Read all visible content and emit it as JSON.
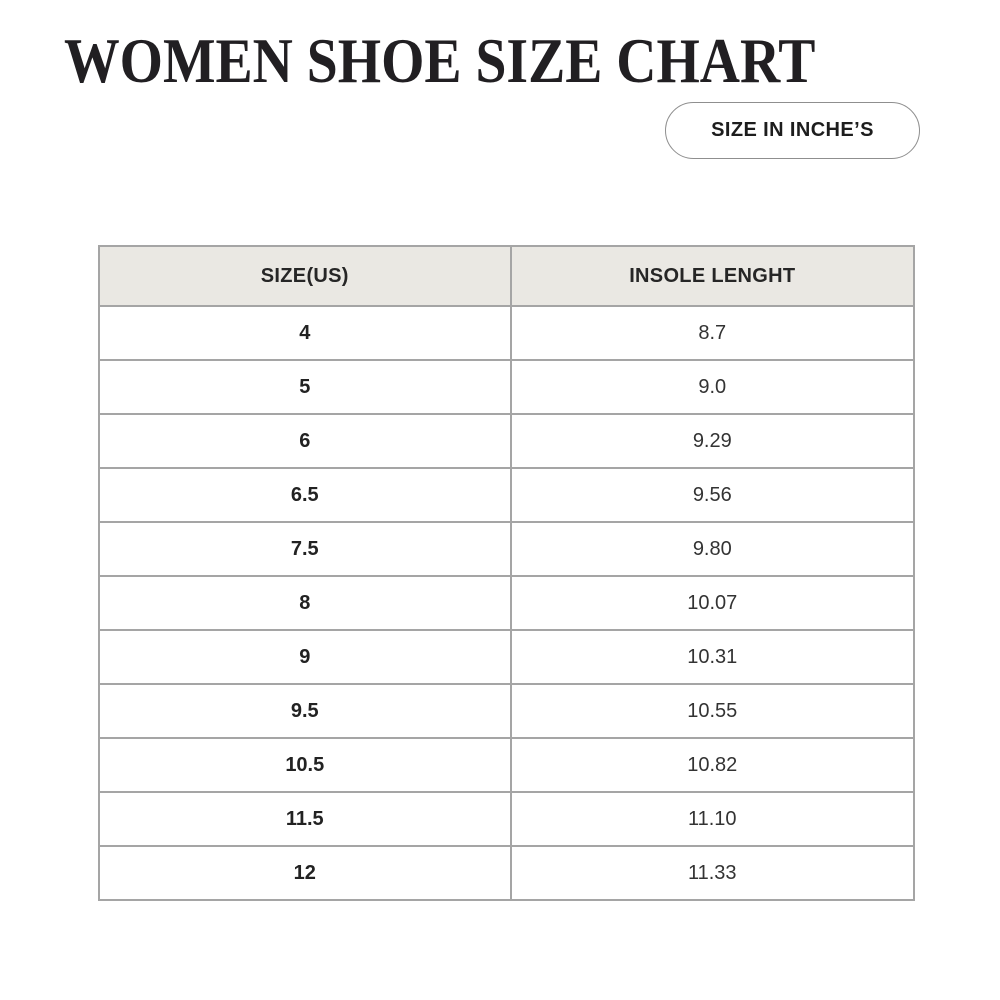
{
  "header": {
    "title": "WOMEN SHOE SIZE CHART",
    "unit_badge_label": "SIZE IN INCHE’S"
  },
  "table": {
    "columns": [
      "SIZE(US)",
      "INSOLE LENGHT"
    ],
    "rows": [
      [
        "4",
        "8.7"
      ],
      [
        "5",
        "9.0"
      ],
      [
        "6",
        "9.29"
      ],
      [
        "6.5",
        "9.56"
      ],
      [
        "7.5",
        "9.80"
      ],
      [
        "8",
        "10.07"
      ],
      [
        "9",
        "10.31"
      ],
      [
        "9.5",
        "10.55"
      ],
      [
        "10.5",
        "10.82"
      ],
      [
        "11.5",
        "11.10"
      ],
      [
        "12",
        "11.33"
      ]
    ]
  },
  "colors": {
    "page_background": "#ffffff",
    "title_text": "#211f22",
    "table_header_background": "#eae8e3",
    "table_border": "#a5a5a5",
    "pill_border": "#8f8f8f",
    "body_text": "#2b2b2b"
  }
}
